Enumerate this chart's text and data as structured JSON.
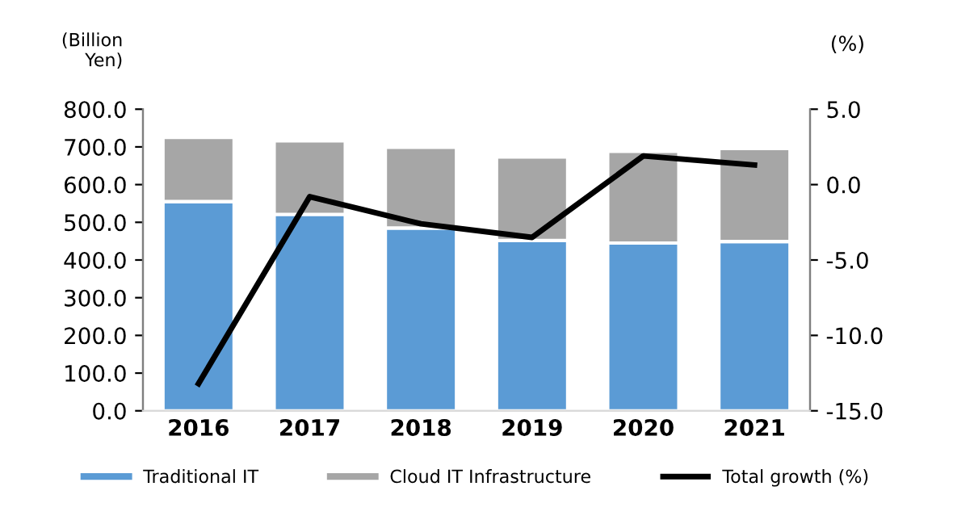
{
  "chart_data": {
    "type": "bar",
    "stacked": true,
    "ylabel": "(Billion\nYen)",
    "y2label": "(%)",
    "categories": [
      "2016",
      "2017",
      "2018",
      "2019",
      "2020",
      "2021"
    ],
    "series": [
      {
        "name": "Traditional IT",
        "color": "#5b9bd5",
        "values": [
          555,
          521,
          485,
          452,
          445,
          449
        ]
      },
      {
        "name": "Cloud IT Infrastructure",
        "color": "#a6a6a6",
        "values": [
          170,
          195,
          214,
          221,
          243,
          247
        ]
      },
      {
        "name": "Total growth (%)",
        "type": "line",
        "axis": "y2",
        "color": "#000000",
        "values": [
          -13.2,
          -0.8,
          -2.6,
          -3.5,
          1.9,
          1.3
        ]
      }
    ],
    "ylim": [
      0,
      800
    ],
    "yticks": [
      {
        "value": 0,
        "label": "0.0"
      },
      {
        "value": 100,
        "label": "100.0"
      },
      {
        "value": 200,
        "label": "200.0"
      },
      {
        "value": 300,
        "label": "300.0"
      },
      {
        "value": 400,
        "label": "400.0"
      },
      {
        "value": 500,
        "label": "500.0"
      },
      {
        "value": 600,
        "label": "600.0"
      },
      {
        "value": 700,
        "label": "700.0"
      },
      {
        "value": 800,
        "label": "800.0"
      }
    ],
    "y2lim": [
      -15,
      5
    ],
    "y2ticks": [
      {
        "value": -15,
        "label": "-15.0"
      },
      {
        "value": -10,
        "label": "-10.0"
      },
      {
        "value": -5,
        "label": "-5.0"
      },
      {
        "value": 0,
        "label": "0.0"
      },
      {
        "value": 5,
        "label": "5.0"
      }
    ],
    "grid": false,
    "legend": "bottom",
    "marker": "none",
    "line_style": "solid"
  }
}
